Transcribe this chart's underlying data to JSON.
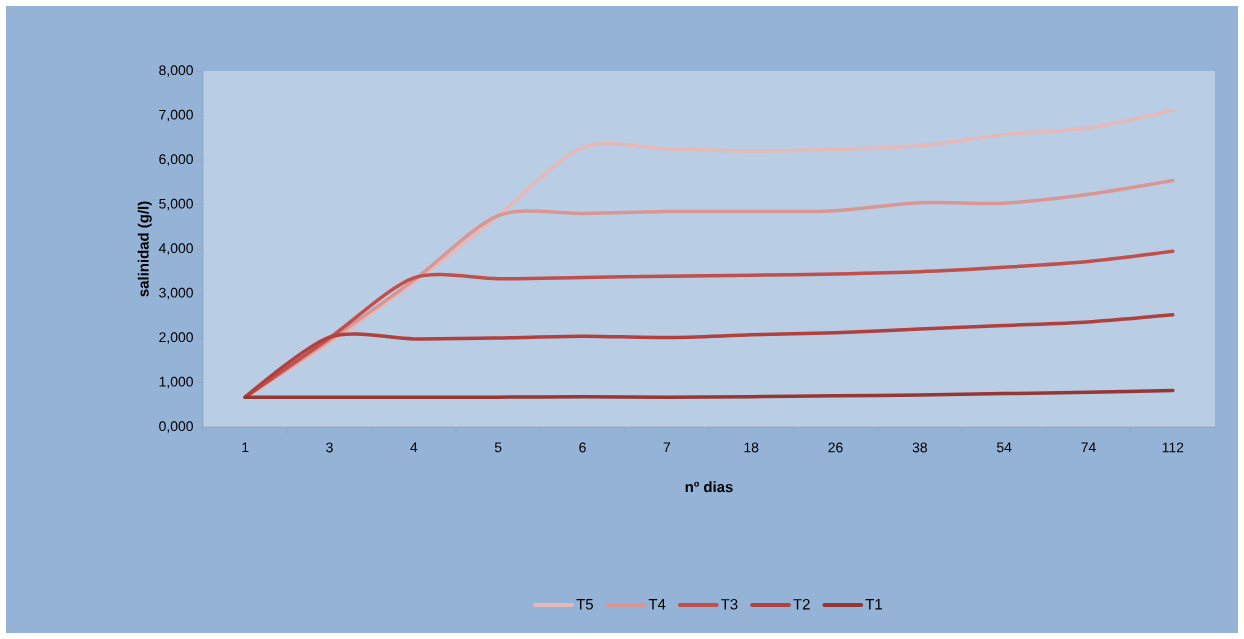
{
  "chart_data": {
    "type": "line",
    "xlabel": "nº dias",
    "ylabel": "salinidad (g/l)",
    "categories": [
      "1",
      "3",
      "4",
      "5",
      "6",
      "7",
      "18",
      "26",
      "38",
      "54",
      "74",
      "112"
    ],
    "series": [
      {
        "name": "T5",
        "color": "#e6b9b8",
        "values": [
          670,
          1900,
          3250,
          4750,
          6280,
          6250,
          6200,
          6240,
          6320,
          6570,
          6720,
          7120
        ]
      },
      {
        "name": "T4",
        "color": "#d99694",
        "values": [
          670,
          1950,
          3300,
          4750,
          4800,
          4840,
          4840,
          4860,
          5040,
          5030,
          5230,
          5540
        ]
      },
      {
        "name": "T3",
        "color": "#c0504d",
        "values": [
          670,
          2000,
          3350,
          3330,
          3360,
          3390,
          3410,
          3440,
          3490,
          3590,
          3720,
          3950
        ]
      },
      {
        "name": "T2",
        "color": "#b0413e",
        "values": [
          670,
          2020,
          1980,
          2000,
          2040,
          2010,
          2070,
          2120,
          2200,
          2280,
          2360,
          2520
        ]
      },
      {
        "name": "T1",
        "color": "#953735",
        "values": [
          670,
          670,
          670,
          670,
          680,
          670,
          680,
          700,
          720,
          750,
          780,
          820
        ]
      }
    ],
    "ylim": [
      0,
      8000
    ],
    "yticks": [
      {
        "value": 0,
        "label": "0,000"
      },
      {
        "value": 1000,
        "label": "1,000"
      },
      {
        "value": 2000,
        "label": "2,000"
      },
      {
        "value": 3000,
        "label": "3,000"
      },
      {
        "value": 4000,
        "label": "4,000"
      },
      {
        "value": 5000,
        "label": "5,000"
      },
      {
        "value": 6000,
        "label": "6,000"
      },
      {
        "value": 7000,
        "label": "7,000"
      },
      {
        "value": 8000,
        "label": "8,000"
      }
    ],
    "grid": false,
    "legend": "bottom",
    "marker": "none",
    "line_style": "solid"
  }
}
